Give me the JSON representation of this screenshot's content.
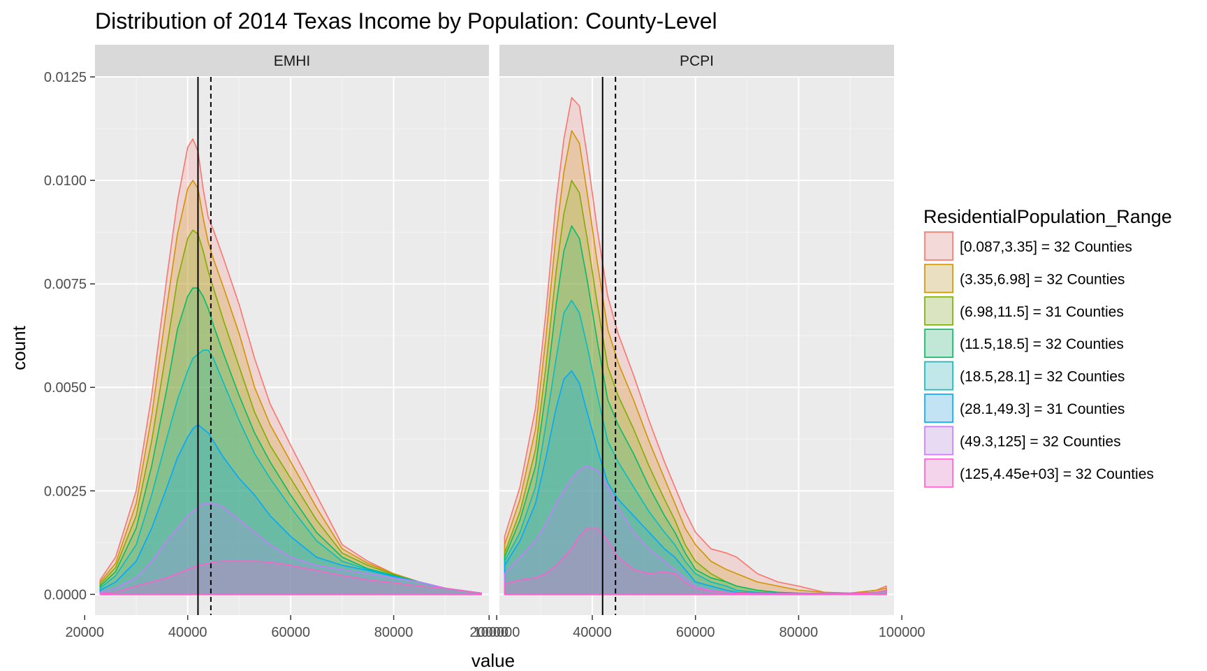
{
  "chart_data": {
    "type": "area",
    "title": "Distribution of 2014 Texas Income by Population: County-Level",
    "xlabel": "value",
    "ylabel": "count",
    "xlim": [
      22000,
      98500
    ],
    "ylim": [
      -0.0005,
      0.0125
    ],
    "x_ticks": [
      20000,
      40000,
      60000,
      80000,
      100000
    ],
    "x_tick_labels": [
      "20000",
      "40000",
      "60000",
      "80000",
      "100000"
    ],
    "y_ticks": [
      0,
      0.0025,
      0.005,
      0.0075,
      0.01,
      0.0125
    ],
    "y_tick_labels": [
      "0.0000",
      "0.0025",
      "0.0050",
      "0.0075",
      "0.0100",
      "0.0125"
    ],
    "grid": true,
    "legend": {
      "title": "ResidentialPopulation_Range",
      "placement": "right",
      "entries": [
        {
          "label": "[0.087,3.35] = 32 Counties",
          "color": "#F8766D"
        },
        {
          "label": "(3.35,6.98] = 32 Counties",
          "color": "#CD9600"
        },
        {
          "label": "(6.98,11.5] = 31 Counties",
          "color": "#7CAE00"
        },
        {
          "label": "(11.5,18.5] = 32 Counties",
          "color": "#00BE67"
        },
        {
          "label": "(18.5,28.1] = 32 Counties",
          "color": "#00BFC4"
        },
        {
          "label": "(28.1,49.3] = 31 Counties",
          "color": "#00A9FF"
        },
        {
          "label": "(49.3,125] = 32 Counties",
          "color": "#C77CFF"
        },
        {
          "label": "(125,4.45e+03] = 32 Counties",
          "color": "#FF61CC"
        }
      ]
    },
    "facets": [
      {
        "label": "EMHI",
        "vline_solid": 42000,
        "vline_dashed": 44500,
        "x": [
          23000,
          26000,
          30000,
          33000,
          36000,
          38000,
          40000,
          41000,
          42000,
          43000,
          44000,
          45000,
          47000,
          50000,
          53000,
          56000,
          60000,
          65000,
          70000,
          75000,
          80000,
          85000,
          90000,
          97000
        ],
        "series": [
          {
            "y": [
              0.00035,
              0.0009,
              0.0025,
              0.0048,
              0.0077,
              0.0095,
              0.0108,
              0.011,
              0.0107,
              0.0098,
              0.0091,
              0.0088,
              0.0081,
              0.007,
              0.0057,
              0.0046,
              0.0036,
              0.0024,
              0.0012,
              0.0008,
              0.0005,
              0.0003,
              0.00015,
              3e-05
            ]
          },
          {
            "y": [
              0.0003,
              0.00075,
              0.0022,
              0.0043,
              0.007,
              0.0087,
              0.0098,
              0.01,
              0.0098,
              0.0091,
              0.0085,
              0.0081,
              0.0074,
              0.0063,
              0.005,
              0.0041,
              0.0032,
              0.0021,
              0.0011,
              0.00075,
              0.0005,
              0.0003,
              0.00015,
              3e-05
            ]
          },
          {
            "y": [
              0.00025,
              0.00065,
              0.0019,
              0.0037,
              0.006,
              0.0076,
              0.0086,
              0.0088,
              0.0087,
              0.0083,
              0.0078,
              0.0074,
              0.0066,
              0.0055,
              0.0044,
              0.0036,
              0.0028,
              0.0018,
              0.001,
              0.0007,
              0.00048,
              0.0003,
              0.00015,
              3e-05
            ]
          },
          {
            "y": [
              0.0002,
              0.00055,
              0.0016,
              0.0031,
              0.005,
              0.0064,
              0.0072,
              0.0074,
              0.0074,
              0.0072,
              0.0069,
              0.0065,
              0.0058,
              0.0048,
              0.0039,
              0.0032,
              0.0024,
              0.0015,
              0.0009,
              0.00062,
              0.00046,
              0.0003,
              0.00015,
              3e-05
            ]
          },
          {
            "y": [
              0.00015,
              0.00045,
              0.0012,
              0.0024,
              0.0038,
              0.0047,
              0.0054,
              0.0057,
              0.0058,
              0.0059,
              0.0059,
              0.0057,
              0.0051,
              0.0042,
              0.0034,
              0.0028,
              0.0021,
              0.0013,
              0.0008,
              0.0006,
              0.00044,
              0.0003,
              0.00015,
              3e-05
            ]
          },
          {
            "y": [
              0.0001,
              0.0003,
              0.0008,
              0.0016,
              0.0026,
              0.0033,
              0.0038,
              0.004,
              0.0041,
              0.004,
              0.0039,
              0.0037,
              0.0033,
              0.0028,
              0.0024,
              0.0019,
              0.0014,
              0.0009,
              0.0007,
              0.00058,
              0.00043,
              0.0003,
              0.00015,
              3e-05
            ]
          },
          {
            "y": [
              5e-05,
              0.00015,
              0.0004,
              0.0008,
              0.0013,
              0.0016,
              0.0019,
              0.002,
              0.0021,
              0.0022,
              0.0022,
              0.0022,
              0.0021,
              0.0018,
              0.0015,
              0.0012,
              0.0009,
              0.0007,
              0.0006,
              0.0005,
              0.0004,
              0.0003,
              0.00015,
              3e-05
            ]
          },
          {
            "y": [
              2e-05,
              5e-05,
              0.0002,
              0.0003,
              0.0004,
              0.0005,
              0.0006,
              0.00065,
              0.0007,
              0.00072,
              0.00075,
              0.00078,
              0.0008,
              0.0008,
              0.0008,
              0.00078,
              0.0007,
              0.00058,
              0.00046,
              0.00035,
              0.00028,
              0.0002,
              0.00015,
              3e-05
            ]
          }
        ]
      },
      {
        "label": "PCPI",
        "vline_solid": 42000,
        "vline_dashed": 44500,
        "x": [
          23000,
          26000,
          29000,
          31000,
          33000,
          34500,
          36000,
          37500,
          39000,
          41000,
          43000,
          45000,
          48000,
          51000,
          54000,
          56000,
          58000,
          60000,
          63000,
          66000,
          68000,
          72000,
          76000,
          80000,
          85000,
          90000,
          95000,
          97000
        ],
        "series": [
          {
            "y": [
              0.0014,
              0.0026,
              0.0045,
              0.0068,
              0.0095,
              0.011,
              0.012,
              0.0118,
              0.0106,
              0.0088,
              0.0072,
              0.0063,
              0.0053,
              0.0042,
              0.0032,
              0.0026,
              0.002,
              0.0015,
              0.0011,
              0.001,
              0.0009,
              0.0005,
              0.0003,
              0.0002,
              5e-05,
              3e-05,
              0.0001,
              0.0002
            ]
          },
          {
            "y": [
              0.0012,
              0.0023,
              0.004,
              0.0062,
              0.0087,
              0.0102,
              0.0112,
              0.0109,
              0.0097,
              0.008,
              0.0064,
              0.0056,
              0.0047,
              0.0037,
              0.0028,
              0.0022,
              0.0016,
              0.0012,
              0.0008,
              0.0006,
              0.0005,
              0.0003,
              0.0002,
              0.0001,
              5e-05,
              3e-05,
              0.0001,
              0.00015
            ]
          },
          {
            "y": [
              0.001,
              0.002,
              0.0035,
              0.0055,
              0.0078,
              0.0092,
              0.01,
              0.0097,
              0.0086,
              0.007,
              0.0055,
              0.0048,
              0.004,
              0.0031,
              0.0023,
              0.0018,
              0.0012,
              0.0008,
              0.0005,
              0.0003,
              0.0002,
              0.0001,
              5e-05,
              3e-05,
              2e-05,
              2e-05,
              5e-05,
              0.0001
            ]
          },
          {
            "y": [
              0.0009,
              0.0018,
              0.0031,
              0.0049,
              0.007,
              0.0083,
              0.0089,
              0.0086,
              0.0076,
              0.0061,
              0.0047,
              0.0041,
              0.0034,
              0.0026,
              0.0019,
              0.0015,
              0.001,
              0.0006,
              0.0004,
              0.0003,
              0.0002,
              0.0001,
              5e-05,
              3e-05,
              2e-05,
              2e-05,
              5e-05,
              0.0001
            ]
          },
          {
            "y": [
              0.0008,
              0.0015,
              0.0026,
              0.0041,
              0.0057,
              0.0068,
              0.0071,
              0.0068,
              0.006,
              0.0048,
              0.0037,
              0.0032,
              0.0026,
              0.002,
              0.0015,
              0.0012,
              0.0008,
              0.0005,
              0.0003,
              0.0002,
              0.0001,
              5e-05,
              3e-05,
              2e-05,
              2e-05,
              2e-05,
              5e-05,
              0.0001
            ]
          },
          {
            "y": [
              0.0007,
              0.0013,
              0.0022,
              0.0033,
              0.0045,
              0.0052,
              0.0054,
              0.0051,
              0.0044,
              0.0035,
              0.0027,
              0.0023,
              0.0019,
              0.0015,
              0.0011,
              0.0009,
              0.0006,
              0.0003,
              0.0002,
              0.0001,
              5e-05,
              3e-05,
              2e-05,
              2e-05,
              2e-05,
              2e-05,
              5e-05,
              0.0001
            ]
          },
          {
            "y": [
              0.0005,
              0.0009,
              0.0013,
              0.0017,
              0.0022,
              0.0025,
              0.0028,
              0.003,
              0.0031,
              0.003,
              0.0026,
              0.0021,
              0.0015,
              0.0011,
              0.0008,
              0.0006,
              0.0004,
              0.0002,
              0.0001,
              5e-05,
              3e-05,
              2e-05,
              2e-05,
              2e-05,
              2e-05,
              2e-05,
              5e-05,
              0.0001
            ]
          },
          {
            "y": [
              0.00025,
              0.00035,
              0.0004,
              0.0005,
              0.0007,
              0.0009,
              0.0011,
              0.0014,
              0.0016,
              0.0016,
              0.0013,
              0.0009,
              0.0006,
              0.0005,
              0.00055,
              0.0005,
              0.0003,
              0.00015,
              8e-05,
              5e-05,
              3e-05,
              2e-05,
              2e-05,
              2e-05,
              2e-05,
              2e-05,
              5e-05,
              0.0001
            ]
          }
        ]
      }
    ]
  }
}
